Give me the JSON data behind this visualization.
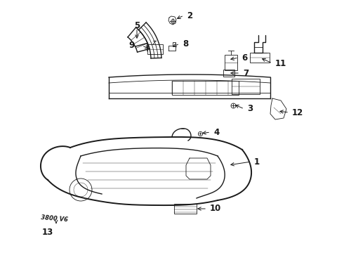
{
  "background_color": "#ffffff",
  "line_color": "#1a1a1a",
  "fig_width": 4.9,
  "fig_height": 3.6,
  "dpi": 100,
  "label_fontsize": 8.5,
  "label_fontweight": "bold"
}
